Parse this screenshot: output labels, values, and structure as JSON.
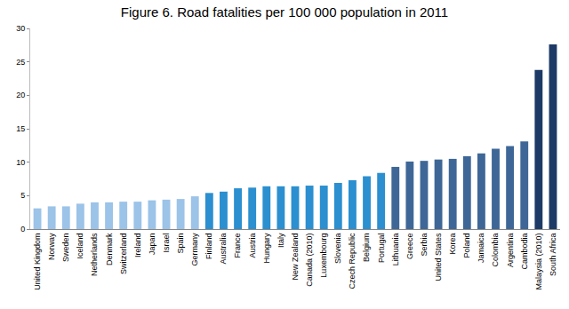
{
  "chart_data": {
    "type": "bar",
    "title": "Figure 6. Road fatalities per 100 000 population in 2011",
    "categories": [
      "United Kingdom",
      "Norway",
      "Sweden",
      "Iceland",
      "Netherlands",
      "Denmark",
      "Switzerland",
      "Ireland",
      "Japan",
      "Israel",
      "Spain",
      "Germany",
      "Finland",
      "Australia",
      "France",
      "Austria",
      "Hungary",
      "Italy",
      "New Zealand",
      "Canada (2010)",
      "Luxembourg",
      "Slovenia",
      "Czech Republic",
      "Belgium",
      "Portugal",
      "Lithuania",
      "Greece",
      "Serbia",
      "United States",
      "Korea",
      "Poland",
      "Jamaica",
      "Colombia",
      "Argentina",
      "Cambodia",
      "Malaysia (2010)",
      "South Africa"
    ],
    "values": [
      3.1,
      3.4,
      3.4,
      3.8,
      4.0,
      4.0,
      4.1,
      4.1,
      4.3,
      4.4,
      4.5,
      4.9,
      5.4,
      5.6,
      6.1,
      6.2,
      6.4,
      6.4,
      6.4,
      6.5,
      6.5,
      6.9,
      7.3,
      7.9,
      8.4,
      9.3,
      10.1,
      10.2,
      10.4,
      10.5,
      10.9,
      11.3,
      12.0,
      12.4,
      13.1,
      23.8,
      27.6
    ],
    "colors": [
      "#9cc3e8",
      "#9cc3e8",
      "#9cc3e8",
      "#9cc3e8",
      "#9cc3e8",
      "#9cc3e8",
      "#9cc3e8",
      "#9cc3e8",
      "#9cc3e8",
      "#9cc3e8",
      "#9cc3e8",
      "#9cc3e8",
      "#2b8fd0",
      "#2b8fd0",
      "#2b8fd0",
      "#2b8fd0",
      "#2b8fd0",
      "#2b8fd0",
      "#2b8fd0",
      "#2b8fd0",
      "#2b8fd0",
      "#2b8fd0",
      "#2b8fd0",
      "#2b8fd0",
      "#2b8fd0",
      "#3e6797",
      "#3e6797",
      "#3e6797",
      "#3e6797",
      "#3e6797",
      "#3e6797",
      "#3e6797",
      "#3e6797",
      "#3e6797",
      "#3e6797",
      "#1d3a66",
      "#1d3a66"
    ],
    "ylim": [
      0,
      30
    ],
    "yticks": [
      0,
      5,
      10,
      15,
      20,
      25,
      30
    ],
    "grid": false
  }
}
